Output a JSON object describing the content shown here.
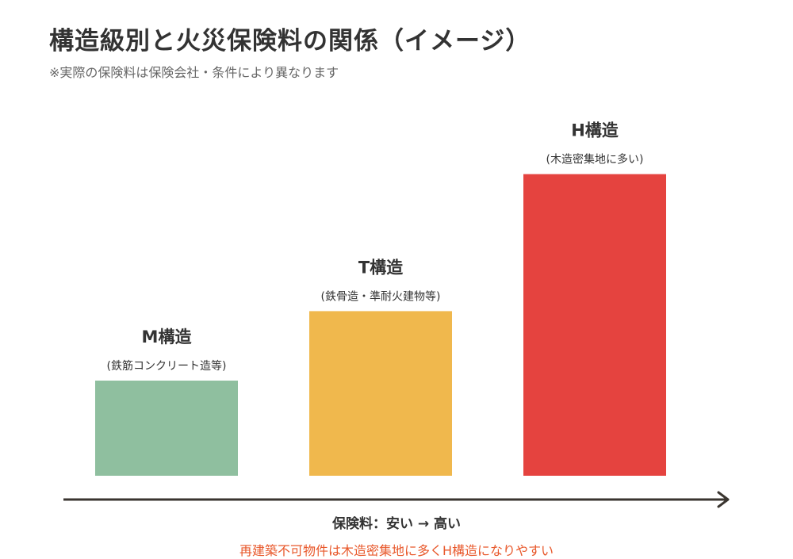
{
  "page": {
    "title": "構造級別と火災保険料の関係（イメージ）",
    "subtitle": "※実際の保険料は保険会社・条件により異なります",
    "axis_label": "保険料：安い → 高い",
    "footnote": "再建築不可物件は木造密集地に多くH構造になりやすい"
  },
  "chart_data": {
    "type": "bar",
    "categories": [
      "M構造",
      "T構造",
      "H構造"
    ],
    "descriptions": [
      "(鉄筋コンクリート造等)",
      "(鉄骨造・準耐火建物等)",
      "(木造密集地に多い)"
    ],
    "values": [
      1,
      1.73,
      3.17
    ],
    "colors": [
      "#8fbf9f",
      "#f0b84d",
      "#e5433f"
    ],
    "axis_color": "#3a3530",
    "grid": false,
    "legend": "none"
  }
}
